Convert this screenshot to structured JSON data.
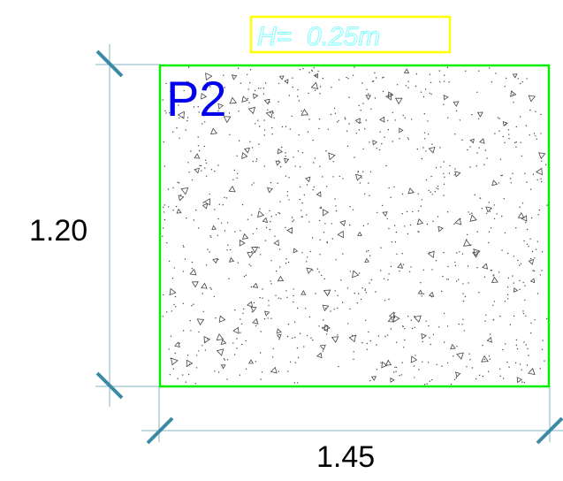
{
  "height_label": "H=  0.25m",
  "panel_label": "P2",
  "dimension_width": "1.45",
  "dimension_height": "1.20",
  "colors": {
    "panel_border": "#00ee00",
    "height_box_border": "#ffff00",
    "height_text": "#80ffff",
    "panel_label": "#0000ee",
    "dimension_line": "#86b3c3",
    "dimension_tick": "#3d8aa6",
    "hatch": "#444444"
  },
  "hatch_pattern": "concrete-stipple"
}
